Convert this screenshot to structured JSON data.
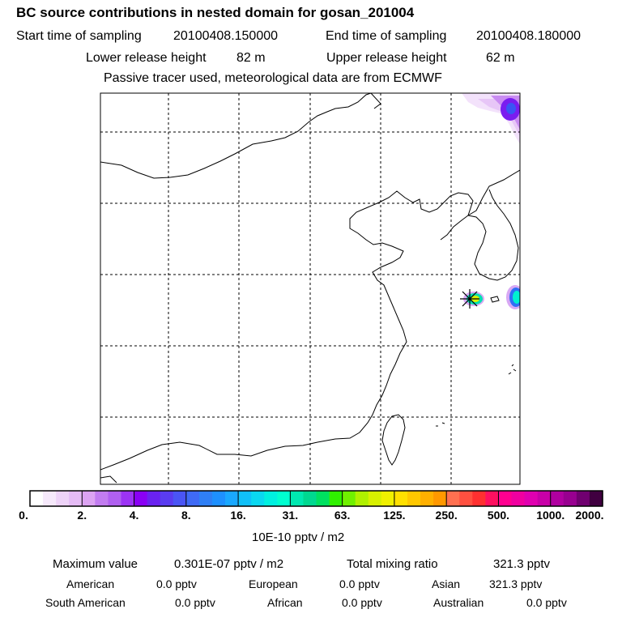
{
  "title": "BC  source contributions in nested domain for gosan_201004",
  "sampling": {
    "start_label": "Start time of sampling",
    "start_value": "20100408.150000",
    "end_label": "End time of sampling",
    "end_value": "20100408.180000"
  },
  "release": {
    "lower_label": "Lower release height",
    "lower_value": "82 m",
    "upper_label": "Upper release height",
    "upper_value": "62 m"
  },
  "note": "Passive tracer used, meteorological data are from ECMWF",
  "colorbar": {
    "unit_label": "10E-10 pptv / m2",
    "tick_labels": [
      "0.",
      "2.",
      "4.",
      "8.",
      "16.",
      "31.",
      "63.",
      "125.",
      "250.",
      "500.",
      "1000.",
      "2000."
    ],
    "colors": [
      "#ffffff",
      "#f6e9fb",
      "#eed3f8",
      "#e5bbf5",
      "#dca3f2",
      "#c27cf0",
      "#b060f0",
      "#9c33f5",
      "#8a00f5",
      "#6a22f0",
      "#5a3cf0",
      "#4a55f5",
      "#3f6af5",
      "#2f7ff5",
      "#1e90ff",
      "#1aa8ff",
      "#10c0f8",
      "#0ad8f0",
      "#00f0e0",
      "#00ffd0",
      "#00e8b0",
      "#00d890",
      "#00e060",
      "#30f000",
      "#70f000",
      "#b0f000",
      "#d8f000",
      "#f0f000",
      "#ffe000",
      "#ffc800",
      "#ffb000",
      "#ff9800",
      "#ff7050",
      "#ff5040",
      "#ff3030",
      "#ff1060",
      "#ff0090",
      "#f000a0",
      "#e000b0",
      "#c800a8",
      "#b000a0",
      "#980090",
      "#700070",
      "#400040"
    ]
  },
  "stats": {
    "max_label": "Maximum value",
    "max_value": "0.301E-07 pptv / m2",
    "total_label": "Total mixing ratio",
    "total_value": "321.3 pptv"
  },
  "regions": [
    {
      "name": "American",
      "value": "0.0 pptv"
    },
    {
      "name": "European",
      "value": "0.0 pptv"
    },
    {
      "name": "Asian",
      "value": "321.3 pptv"
    },
    {
      "name": "South American",
      "value": "0.0 pptv"
    },
    {
      "name": "African",
      "value": "0.0 pptv"
    },
    {
      "name": "Australian",
      "value": "0.0 pptv"
    }
  ]
}
